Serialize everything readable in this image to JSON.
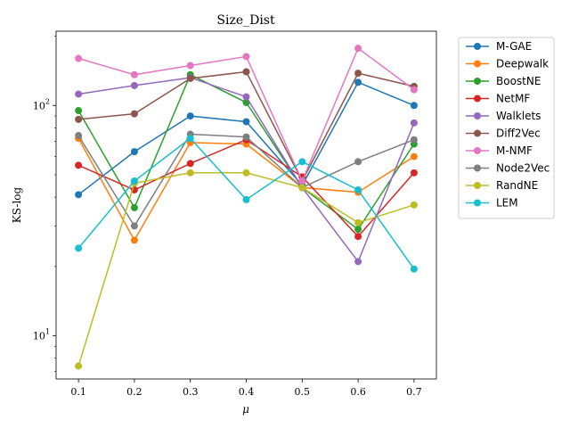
{
  "chart_data": {
    "type": "line",
    "title": "Size_Dist",
    "xlabel": "μ",
    "ylabel": "KS-log",
    "yscale": "log",
    "grid": false,
    "legend_position": "outside-right",
    "x": [
      0.1,
      0.2,
      0.3,
      0.4,
      0.5,
      0.6,
      0.7
    ],
    "x_tick_labels": [
      "0.1",
      "0.2",
      "0.3",
      "0.4",
      "0.5",
      "0.6",
      "0.7"
    ],
    "xlim": [
      0.06,
      0.74
    ],
    "ylim": [
      6.5,
      210
    ],
    "y_ticks": [
      {
        "value": 10,
        "base": "10",
        "exp": "1"
      },
      {
        "value": 100,
        "base": "10",
        "exp": "2"
      }
    ],
    "series": [
      {
        "name": "M-GAE",
        "color": "#1f77b4",
        "values": [
          41,
          63,
          90,
          85,
          45,
          126,
          100
        ]
      },
      {
        "name": "Deepwalk",
        "color": "#ff7f0e",
        "values": [
          72,
          26,
          69,
          68,
          44,
          42,
          60
        ]
      },
      {
        "name": "BoostNE",
        "color": "#2ca02c",
        "values": [
          95,
          36,
          136,
          103,
          44,
          29,
          68
        ]
      },
      {
        "name": "NetMF",
        "color": "#d62728",
        "values": [
          55,
          43,
          56,
          71,
          49,
          27,
          51
        ]
      },
      {
        "name": "Walklets",
        "color": "#9467bd",
        "values": [
          112,
          122,
          132,
          109,
          44,
          21,
          84
        ]
      },
      {
        "name": "Diff2Vec",
        "color": "#8c564b",
        "values": [
          87,
          92,
          131,
          140,
          47,
          138,
          121
        ]
      },
      {
        "name": "M-NMF",
        "color": "#e377c2",
        "values": [
          160,
          136,
          149,
          163,
          47,
          177,
          117
        ]
      },
      {
        "name": "Node2Vec",
        "color": "#7f7f7f",
        "values": [
          74,
          30,
          75,
          73,
          44,
          57,
          71
        ]
      },
      {
        "name": "RandNE",
        "color": "#bcbd22",
        "values": [
          7.4,
          46,
          51,
          51,
          44,
          31,
          37
        ]
      },
      {
        "name": "LEM",
        "color": "#17becf",
        "values": [
          24,
          47,
          72,
          39,
          57,
          43,
          19.5
        ]
      }
    ]
  }
}
